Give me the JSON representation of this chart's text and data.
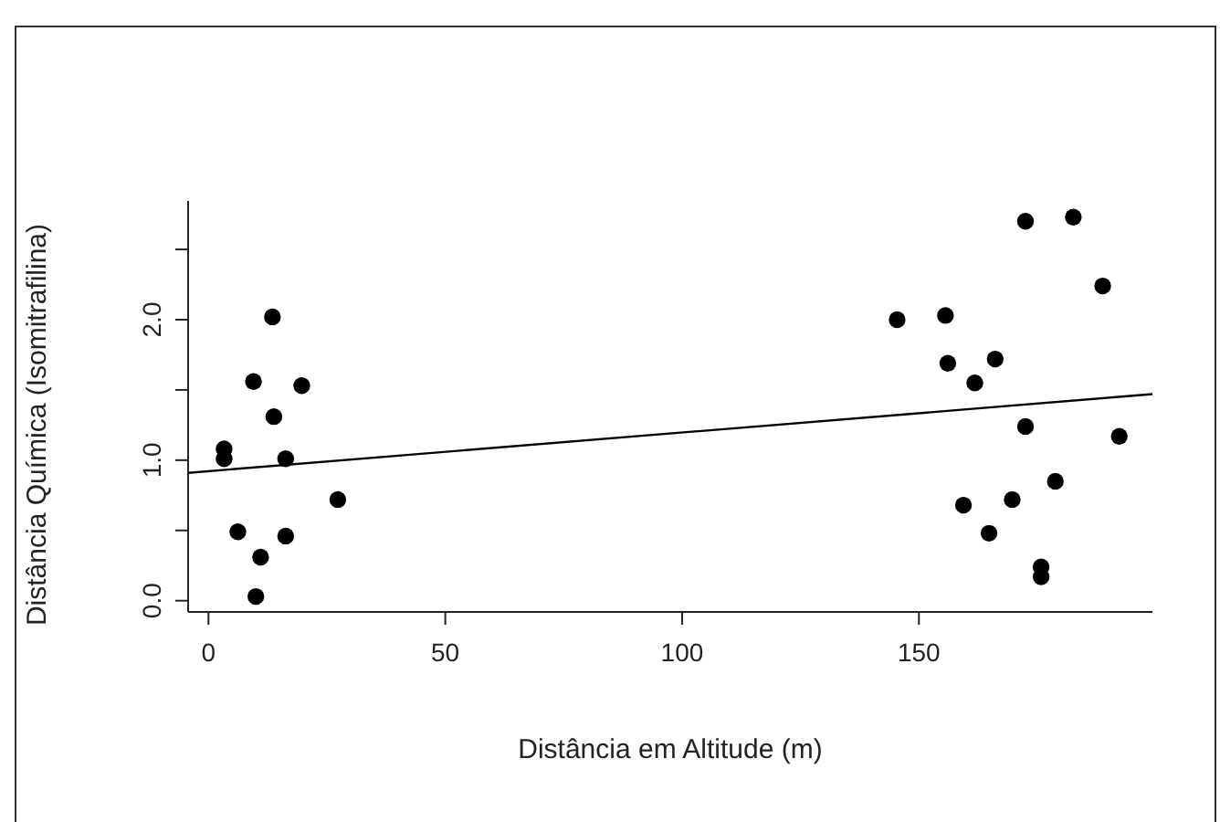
{
  "chart_data": {
    "type": "scatter",
    "xlabel": "Distância em Altitude (m)",
    "ylabel": "Distância Química (Isomitrafilina)",
    "xlim": [
      -4.3,
      199.3
    ],
    "ylim": [
      -0.08,
      2.845
    ],
    "xticks": [
      0,
      50,
      100,
      150
    ],
    "yticks": [
      {
        "value": 0,
        "label": "0.0"
      },
      {
        "value": 0.5,
        "label": null
      },
      {
        "value": 1,
        "label": "1.0"
      },
      {
        "value": 1.5,
        "label": null
      },
      {
        "value": 2,
        "label": "2.0"
      },
      {
        "value": 2.5,
        "label": null
      }
    ],
    "marker": "circle",
    "series": [
      {
        "color": "#000000",
        "x": [
          3.3,
          3.3,
          6.2,
          9.5,
          11.0,
          10.0,
          13.5,
          13.8,
          16.3,
          16.3,
          19.7,
          27.3,
          145.4,
          155.6,
          156.1,
          161.8,
          166.1,
          159.4,
          164.8,
          169.7,
          172.5,
          172.5,
          175.8,
          175.8,
          178.8,
          182.6,
          188.8,
          192.3
        ],
        "values": [
          1.08,
          1.01,
          0.49,
          1.56,
          0.31,
          0.03,
          2.02,
          1.31,
          1.01,
          0.46,
          1.53,
          0.72,
          2.0,
          2.03,
          1.69,
          1.55,
          1.72,
          0.68,
          0.48,
          0.72,
          2.7,
          1.24,
          0.24,
          0.17,
          0.85,
          2.73,
          2.24,
          1.17
        ]
      },
      {
        "type": "line",
        "color": "#000000",
        "marker": "none",
        "line_style": "solid",
        "x": [
          -4.3,
          199.3
        ],
        "values": [
          0.91,
          1.47
        ]
      }
    ]
  }
}
